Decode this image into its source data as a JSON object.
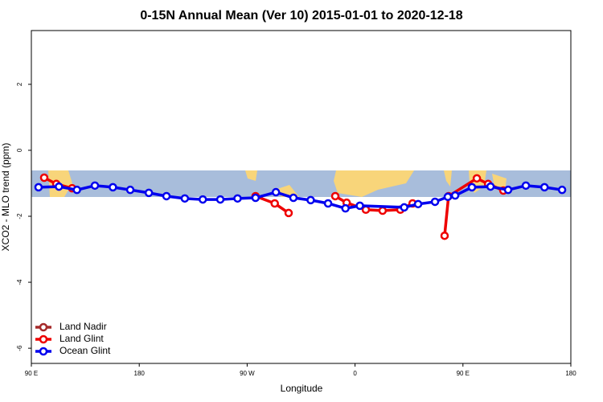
{
  "chart_data": {
    "type": "line",
    "title": "0-15N Annual Mean (Ver 10)   2015-01-01 to 2020-12-18",
    "x_label": "Longitude",
    "y_label": "XCO2 - MLO trend (ppm)",
    "xlim": [
      90,
      540
    ],
    "ylim": [
      -6.46,
      3.63
    ],
    "xticks": [
      {
        "value": 90,
        "label": "90 E"
      },
      180,
      {
        "value": 270,
        "label": "90 W"
      },
      {
        "value": 360,
        "label": "0"
      },
      {
        "value": 450,
        "label": "90 E"
      },
      {
        "value": 540,
        "label": "180"
      }
    ],
    "yticks": [
      -6,
      -4,
      -2,
      0,
      2
    ],
    "legend": "bottom-left",
    "series": [
      {
        "name": "Land Nadir",
        "color": "#a52a2a",
        "x": [],
        "values": []
      },
      {
        "name": "Land Glint",
        "color": "#ee0000",
        "x": [
          100.7,
          110.8,
          124,
          null,
          277,
          293,
          304.6,
          null,
          343.5,
          353,
          369,
          383,
          397.8,
          408,
          null,
          434.7,
          438,
          461.6,
          471,
          483.7
        ],
        "values": [
          -0.83,
          -1.02,
          -1.15,
          null,
          -1.39,
          -1.61,
          -1.9,
          null,
          -1.39,
          -1.59,
          -1.8,
          -1.83,
          -1.8,
          -1.61,
          null,
          -2.59,
          -1.39,
          -0.85,
          -1.02,
          -1.22
        ]
      },
      {
        "name": "Ocean Glint",
        "color": "#0000ee",
        "x": [
          96,
          113,
          128,
          143,
          158,
          172.5,
          188,
          202.7,
          218,
          233,
          247.6,
          262,
          277,
          294,
          308.6,
          323,
          337.5,
          352,
          364,
          401,
          412.6,
          426.7,
          437.4,
          443.5,
          457.5,
          473,
          487.7,
          502.5,
          518,
          532.7
        ],
        "values": [
          -1.12,
          -1.1,
          -1.2,
          -1.07,
          -1.12,
          -1.2,
          -1.29,
          -1.39,
          -1.46,
          -1.49,
          -1.49,
          -1.46,
          -1.44,
          -1.27,
          -1.44,
          -1.51,
          -1.61,
          -1.76,
          -1.68,
          -1.73,
          -1.63,
          -1.56,
          -1.41,
          -1.37,
          -1.12,
          -1.1,
          -1.2,
          -1.07,
          -1.12,
          -1.2
        ]
      }
    ]
  }
}
